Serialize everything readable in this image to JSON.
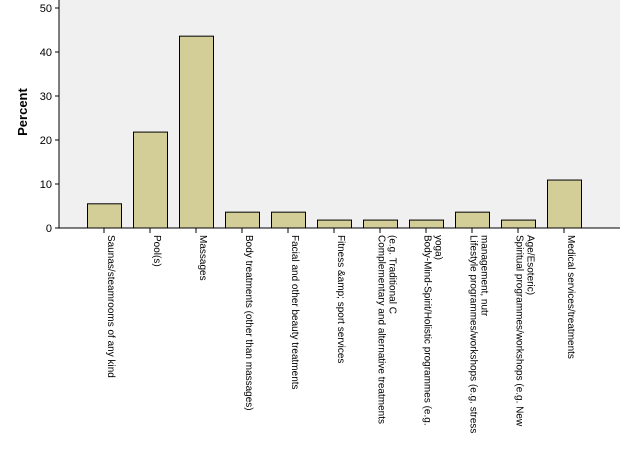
{
  "chart_data": {
    "type": "bar",
    "title": "",
    "xlabel": "",
    "ylabel": "Percent",
    "ylim": [
      0,
      50
    ],
    "yticks": [
      0,
      10,
      20,
      30,
      40,
      50
    ],
    "grid": false,
    "legend": "none",
    "categories": [
      "Saunas/steamrooms of any kind",
      "Pool(s)",
      "Massages",
      "Body treatments (other than massages)",
      "Facial and other beauty treatments",
      "Fitness &amp; sport services",
      "Complementary and alternative treatments (e.g. Traditional C",
      "Body-Mind-Spirit/Holistic programmes (e.g. yoga)",
      "Lifestyle programmes/workshops (e.g. stress management, nutr",
      "Spiritual programmes/workshops (e.g. New Age/Esoteric)",
      "Medical services/treatments"
    ],
    "values": [
      5.5,
      21.8,
      43.6,
      3.6,
      3.6,
      1.8,
      1.8,
      1.8,
      3.6,
      1.8,
      10.9
    ],
    "colors": {
      "plot_background": "#f0f0f0",
      "bar_fill": "#d3ce97",
      "bar_stroke": "#000000",
      "axis": "#000000"
    }
  }
}
